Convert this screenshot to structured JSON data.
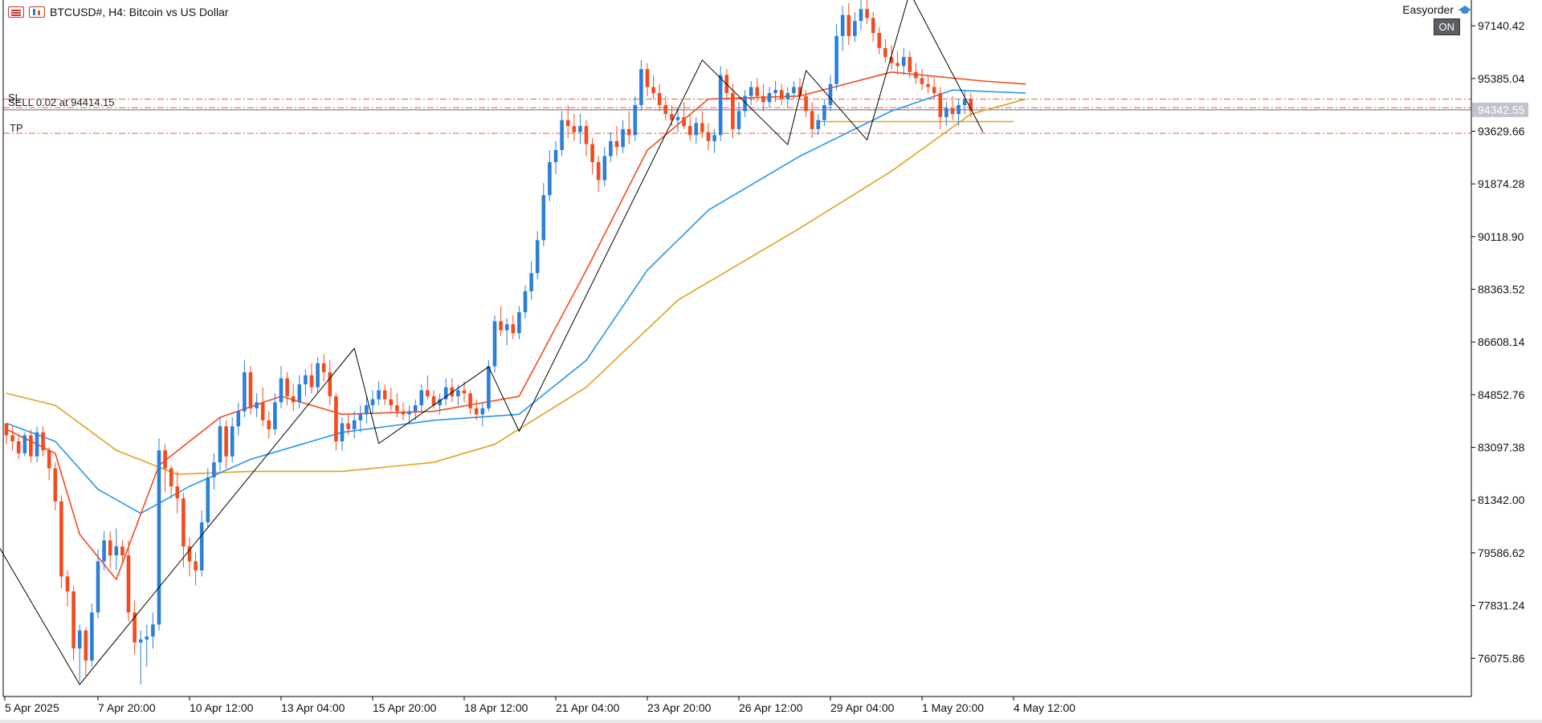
{
  "header": {
    "symbol_text": "BTCUSD#, H4:  Bitcoin vs US Dollar"
  },
  "expert": {
    "name": "Easyorder",
    "status": "ON"
  },
  "orders": {
    "sl_label": "SL",
    "sell_label": "SELL 0.02 at 94414.15",
    "tp_label": "TP"
  },
  "colors": {
    "bull": "#2a7fd8",
    "bear": "#f24b1f",
    "ma_fast": "#f24b1f",
    "ma_mid": "#2496ee",
    "ma_slow": "#e0a21c",
    "zigzag": "#000000",
    "order_line": "#f05b3a",
    "bid_line": "#5a6a86",
    "axis": "#000000",
    "price_tag_bg": "#c0c4cc"
  },
  "icons": [
    "list-icon",
    "chart-icon",
    "graduation-cap-icon"
  ],
  "chart_data": {
    "type": "candlestick",
    "price_axis_labels": [
      "97140.42",
      "95385.04",
      "93629.66",
      "91874.28",
      "90118.90",
      "88363.52",
      "86608.14",
      "84852.76",
      "83097.38",
      "81342.00",
      "79586.62",
      "77831.24",
      "76075.86"
    ],
    "current_price_label": "94342.55",
    "time_labels": [
      "5 Apr 2025",
      "7 Apr 20:00",
      "10 Apr 12:00",
      "13 Apr 04:00",
      "15 Apr 20:00",
      "18 Apr 12:00",
      "21 Apr 04:00",
      "23 Apr 20:00",
      "26 Apr 12:00",
      "29 Apr 04:00",
      "1 May 20:00",
      "4 May 12:00"
    ],
    "ylim": [
      74800,
      98000
    ],
    "levels": {
      "sl": 94700,
      "sell": 94414.15,
      "bid": 94342.55,
      "tp": 93560,
      "pending": 93950
    },
    "zigzag": [
      [
        -4,
        80750
      ],
      [
        12,
        75200
      ],
      [
        57,
        86400
      ],
      [
        61,
        83230
      ],
      [
        79,
        85780
      ],
      [
        84,
        83630
      ],
      [
        114,
        96000
      ],
      [
        128,
        93180
      ],
      [
        131,
        95650
      ],
      [
        141,
        93340
      ],
      [
        148,
        98250
      ],
      [
        160,
        93600
      ]
    ],
    "ma_fast": [
      [
        0,
        83700
      ],
      [
        8,
        82900
      ],
      [
        12,
        80200
      ],
      [
        18,
        78700
      ],
      [
        25,
        82500
      ],
      [
        35,
        84100
      ],
      [
        45,
        84800
      ],
      [
        55,
        84200
      ],
      [
        70,
        84300
      ],
      [
        84,
        84800
      ],
      [
        95,
        89000
      ],
      [
        105,
        93000
      ],
      [
        115,
        94700
      ],
      [
        130,
        94800
      ],
      [
        145,
        95600
      ],
      [
        160,
        95300
      ],
      [
        167,
        95200
      ]
    ],
    "ma_mid": [
      [
        0,
        83900
      ],
      [
        8,
        83300
      ],
      [
        15,
        81700
      ],
      [
        22,
        80900
      ],
      [
        30,
        81800
      ],
      [
        40,
        82700
      ],
      [
        55,
        83600
      ],
      [
        70,
        84000
      ],
      [
        84,
        84200
      ],
      [
        95,
        86000
      ],
      [
        105,
        89000
      ],
      [
        115,
        91000
      ],
      [
        130,
        92800
      ],
      [
        145,
        94300
      ],
      [
        155,
        95000
      ],
      [
        167,
        94900
      ]
    ],
    "ma_slow": [
      [
        0,
        84900
      ],
      [
        8,
        84500
      ],
      [
        18,
        83000
      ],
      [
        28,
        82200
      ],
      [
        40,
        82300
      ],
      [
        55,
        82300
      ],
      [
        70,
        82600
      ],
      [
        80,
        83200
      ],
      [
        95,
        85100
      ],
      [
        110,
        88000
      ],
      [
        120,
        89200
      ],
      [
        130,
        90400
      ],
      [
        145,
        92300
      ],
      [
        158,
        94200
      ],
      [
        167,
        94700
      ]
    ],
    "candles": [
      [
        83900,
        83900,
        83200,
        83500
      ],
      [
        83500,
        83800,
        83000,
        83300
      ],
      [
        83300,
        83500,
        82700,
        82900
      ],
      [
        82900,
        83600,
        82800,
        83500
      ],
      [
        83500,
        83700,
        82600,
        82800
      ],
      [
        82800,
        83800,
        82600,
        83600
      ],
      [
        83600,
        83800,
        82800,
        83000
      ],
      [
        83000,
        83100,
        82000,
        82400
      ],
      [
        82400,
        82600,
        81000,
        81300
      ],
      [
        81300,
        81500,
        78400,
        78800
      ],
      [
        78800,
        79000,
        77800,
        78300
      ],
      [
        78300,
        78500,
        76000,
        76400
      ],
      [
        76400,
        77200,
        75300,
        77000
      ],
      [
        77000,
        77100,
        75500,
        76000
      ],
      [
        76000,
        77900,
        75800,
        77600
      ],
      [
        77600,
        79700,
        77400,
        79300
      ],
      [
        79300,
        80300,
        79000,
        80000
      ],
      [
        80000,
        80300,
        79100,
        79500
      ],
      [
        79500,
        80400,
        79000,
        79800
      ],
      [
        79800,
        80000,
        79200,
        79500
      ],
      [
        79500,
        80000,
        77300,
        77600
      ],
      [
        77600,
        78000,
        76200,
        76600
      ],
      [
        76600,
        77000,
        75200,
        76700
      ],
      [
        76700,
        77200,
        75800,
        76800
      ],
      [
        76800,
        77600,
        76400,
        77200
      ],
      [
        77200,
        83400,
        77000,
        83000
      ],
      [
        83000,
        83200,
        81600,
        82400
      ],
      [
        82400,
        82500,
        81400,
        81800
      ],
      [
        81800,
        82300,
        80900,
        81400
      ],
      [
        81400,
        81600,
        79100,
        79800
      ],
      [
        79800,
        80100,
        78800,
        79300
      ],
      [
        79300,
        79600,
        78500,
        79000
      ],
      [
        79000,
        81000,
        78800,
        80600
      ],
      [
        80600,
        82400,
        80400,
        82100
      ],
      [
        82100,
        82900,
        81700,
        82600
      ],
      [
        82600,
        84100,
        82300,
        83800
      ],
      [
        83800,
        84000,
        82400,
        82800
      ],
      [
        82800,
        84100,
        82600,
        83800
      ],
      [
        83800,
        84600,
        83500,
        84300
      ],
      [
        84300,
        86000,
        84100,
        85600
      ],
      [
        85600,
        85800,
        84200,
        84400
      ],
      [
        84400,
        84900,
        84100,
        84600
      ],
      [
        84600,
        85100,
        83800,
        84000
      ],
      [
        84000,
        84300,
        83400,
        83700
      ],
      [
        83700,
        84900,
        83500,
        84600
      ],
      [
        84600,
        85800,
        84400,
        85400
      ],
      [
        85400,
        85600,
        84500,
        84800
      ],
      [
        84800,
        85200,
        84300,
        84600
      ],
      [
        84600,
        85500,
        84400,
        85200
      ],
      [
        85200,
        85700,
        84800,
        85500
      ],
      [
        85500,
        85900,
        84900,
        85100
      ],
      [
        85100,
        86100,
        84900,
        85900
      ],
      [
        85900,
        86200,
        85300,
        85600
      ],
      [
        85600,
        86000,
        84500,
        84800
      ],
      [
        84800,
        84900,
        83000,
        83300
      ],
      [
        83300,
        84100,
        83000,
        83900
      ],
      [
        83900,
        84200,
        83500,
        83700
      ],
      [
        83700,
        84300,
        83400,
        84000
      ],
      [
        84000,
        84500,
        83600,
        84200
      ],
      [
        84200,
        84800,
        83900,
        84500
      ],
      [
        84500,
        85000,
        84200,
        84700
      ],
      [
        84700,
        85300,
        84500,
        85000
      ],
      [
        85000,
        85200,
        84500,
        84700
      ],
      [
        84700,
        85100,
        84300,
        84500
      ],
      [
        84500,
        84900,
        84100,
        84300
      ],
      [
        84300,
        84600,
        84000,
        84200
      ],
      [
        84200,
        84500,
        83900,
        84300
      ],
      [
        84300,
        84700,
        84000,
        84500
      ],
      [
        84500,
        85200,
        84300,
        85000
      ],
      [
        85000,
        85500,
        84700,
        84800
      ],
      [
        84800,
        85000,
        84400,
        84500
      ],
      [
        84500,
        84900,
        84200,
        84700
      ],
      [
        84700,
        85400,
        84500,
        85100
      ],
      [
        85100,
        85400,
        84600,
        84800
      ],
      [
        84800,
        85200,
        84500,
        85000
      ],
      [
        85000,
        85300,
        84600,
        84900
      ],
      [
        84900,
        85000,
        84200,
        84400
      ],
      [
        84400,
        84700,
        84000,
        84200
      ],
      [
        84200,
        84600,
        83800,
        84400
      ],
      [
        84400,
        86000,
        84300,
        85800
      ],
      [
        85800,
        87500,
        85600,
        87300
      ],
      [
        87300,
        87800,
        86800,
        87000
      ],
      [
        87000,
        87400,
        86500,
        87200
      ],
      [
        87200,
        87500,
        86700,
        86900
      ],
      [
        86900,
        87800,
        86700,
        87600
      ],
      [
        87600,
        88500,
        87400,
        88300
      ],
      [
        88300,
        89300,
        88000,
        88900
      ],
      [
        88900,
        90300,
        88700,
        90000
      ],
      [
        90000,
        91900,
        89800,
        91500
      ],
      [
        91500,
        93000,
        91300,
        92600
      ],
      [
        92600,
        93300,
        92200,
        93000
      ],
      [
        93000,
        94300,
        92800,
        94000
      ],
      [
        94000,
        94500,
        93400,
        93800
      ],
      [
        93800,
        94200,
        93300,
        93600
      ],
      [
        93600,
        94200,
        93200,
        93800
      ],
      [
        93800,
        94000,
        92800,
        93200
      ],
      [
        93200,
        93400,
        92200,
        92600
      ],
      [
        92600,
        92800,
        91600,
        92000
      ],
      [
        92000,
        93100,
        91800,
        92800
      ],
      [
        92800,
        93600,
        92600,
        93300
      ],
      [
        93300,
        93800,
        92800,
        93100
      ],
      [
        93100,
        94000,
        92900,
        93700
      ],
      [
        93700,
        94300,
        93200,
        93500
      ],
      [
        93500,
        94800,
        93300,
        94500
      ],
      [
        94500,
        96000,
        94300,
        95700
      ],
      [
        95700,
        95900,
        94800,
        95100
      ],
      [
        95100,
        95500,
        94700,
        94900
      ],
      [
        94900,
        95200,
        94300,
        94500
      ],
      [
        94500,
        94800,
        94000,
        94200
      ],
      [
        94200,
        94500,
        93800,
        94000
      ],
      [
        94000,
        94400,
        93600,
        94100
      ],
      [
        94100,
        94600,
        93700,
        93800
      ],
      [
        93800,
        94200,
        93300,
        93500
      ],
      [
        93500,
        94100,
        93200,
        93900
      ],
      [
        93900,
        94300,
        93400,
        93600
      ],
      [
        93600,
        93900,
        93000,
        93300
      ],
      [
        93300,
        93700,
        92900,
        93500
      ],
      [
        93500,
        95800,
        93300,
        95500
      ],
      [
        95500,
        95700,
        94700,
        94900
      ],
      [
        94900,
        95200,
        93400,
        93700
      ],
      [
        93700,
        94600,
        93500,
        94300
      ],
      [
        94300,
        95000,
        94100,
        94800
      ],
      [
        94800,
        95300,
        94500,
        95100
      ],
      [
        95100,
        95400,
        94600,
        94800
      ],
      [
        94800,
        95200,
        94300,
        94600
      ],
      [
        94600,
        95100,
        94400,
        94900
      ],
      [
        94900,
        95300,
        94600,
        95000
      ],
      [
        95000,
        95200,
        94500,
        94700
      ],
      [
        94700,
        95100,
        94400,
        94900
      ],
      [
        94900,
        95300,
        94700,
        95100
      ],
      [
        95100,
        95400,
        94700,
        94800
      ],
      [
        94800,
        95000,
        94100,
        94300
      ],
      [
        94300,
        94600,
        93400,
        93700
      ],
      [
        93700,
        94200,
        93500,
        94000
      ],
      [
        94000,
        94700,
        93800,
        94500
      ],
      [
        94500,
        95500,
        94300,
        95200
      ],
      [
        95200,
        97200,
        95000,
        96800
      ],
      [
        96800,
        97800,
        96300,
        97500
      ],
      [
        97500,
        97900,
        96500,
        96800
      ],
      [
        96800,
        97600,
        96600,
        97300
      ],
      [
        97300,
        98000,
        97000,
        97700
      ],
      [
        97700,
        98100,
        97200,
        97400
      ],
      [
        97400,
        97600,
        96600,
        96900
      ],
      [
        96900,
        97100,
        96200,
        96400
      ],
      [
        96400,
        96700,
        95900,
        96100
      ],
      [
        96100,
        96500,
        95700,
        95900
      ],
      [
        95900,
        96300,
        95500,
        95800
      ],
      [
        95800,
        96400,
        95500,
        96100
      ],
      [
        96100,
        96300,
        95400,
        95600
      ],
      [
        95600,
        95900,
        95200,
        95400
      ],
      [
        95400,
        95700,
        95000,
        95200
      ],
      [
        95200,
        95500,
        94900,
        95100
      ],
      [
        95100,
        95400,
        94700,
        94900
      ],
      [
        94900,
        95100,
        93700,
        94100
      ],
      [
        94100,
        94600,
        93800,
        94400
      ],
      [
        94400,
        94800,
        94000,
        94200
      ],
      [
        94200,
        94700,
        93800,
        94500
      ],
      [
        94500,
        95000,
        94200,
        94700
      ],
      [
        94700,
        94900,
        94100,
        94300
      ]
    ]
  }
}
